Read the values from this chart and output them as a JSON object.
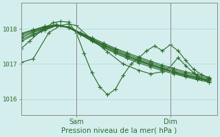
{
  "title": "Pression niveau de la mer( hPa )",
  "bg_color": "#d4eeee",
  "grid_color": "#a8d4d4",
  "line_color": "#2d6b2d",
  "marker": "+",
  "marker_size": 4,
  "linewidth": 0.85,
  "yticks": [
    1016,
    1017,
    1018
  ],
  "ylim": [
    1015.55,
    1018.75
  ],
  "xlim": [
    0,
    50
  ],
  "xtick_positions": [
    14,
    38
  ],
  "xtick_labels": [
    "Sam",
    "Dim"
  ],
  "vline_positions": [
    14,
    38
  ],
  "series": [
    {
      "x": [
        0,
        3,
        6,
        9,
        12,
        15,
        18,
        21,
        24,
        27,
        30,
        33,
        36,
        39,
        42,
        45,
        48
      ],
      "y": [
        1017.7,
        1017.85,
        1018.0,
        1018.1,
        1018.05,
        1017.9,
        1017.75,
        1017.6,
        1017.45,
        1017.32,
        1017.2,
        1017.08,
        1016.97,
        1016.87,
        1016.78,
        1016.7,
        1016.62
      ]
    },
    {
      "x": [
        0,
        3,
        6,
        9,
        12,
        15,
        18,
        21,
        24,
        27,
        30,
        33,
        36,
        39,
        42,
        45,
        48
      ],
      "y": [
        1017.75,
        1017.9,
        1018.02,
        1018.1,
        1018.05,
        1017.88,
        1017.72,
        1017.56,
        1017.42,
        1017.28,
        1017.16,
        1017.04,
        1016.93,
        1016.83,
        1016.74,
        1016.66,
        1016.58
      ]
    },
    {
      "x": [
        0,
        3,
        6,
        9,
        12,
        15,
        18,
        21,
        24,
        27,
        30,
        33,
        36,
        39,
        42,
        45,
        48
      ],
      "y": [
        1017.8,
        1017.93,
        1018.04,
        1018.1,
        1018.04,
        1017.87,
        1017.7,
        1017.53,
        1017.38,
        1017.24,
        1017.12,
        1017.0,
        1016.89,
        1016.79,
        1016.7,
        1016.62,
        1016.55
      ]
    },
    {
      "x": [
        0,
        3,
        6,
        9,
        12,
        15,
        18,
        21,
        24,
        27,
        30,
        33,
        36,
        39,
        42,
        45,
        48
      ],
      "y": [
        1017.85,
        1017.96,
        1018.06,
        1018.12,
        1018.05,
        1017.86,
        1017.67,
        1017.5,
        1017.34,
        1017.2,
        1017.07,
        1016.96,
        1016.85,
        1016.75,
        1016.66,
        1016.58,
        1016.51
      ]
    },
    {
      "x": [
        0,
        3,
        6,
        9,
        12,
        15,
        18,
        21,
        24,
        27,
        30,
        33,
        36,
        39,
        42,
        45,
        48
      ],
      "y": [
        1017.88,
        1017.98,
        1018.08,
        1018.13,
        1018.05,
        1017.85,
        1017.65,
        1017.47,
        1017.31,
        1017.16,
        1017.03,
        1016.92,
        1016.81,
        1016.72,
        1016.63,
        1016.55,
        1016.48
      ]
    },
    {
      "x": [
        0,
        3,
        6,
        9,
        12,
        15,
        18,
        21,
        24,
        27,
        30,
        33,
        36,
        39,
        42,
        45,
        48
      ],
      "y": [
        1017.65,
        1017.82,
        1017.97,
        1018.1,
        1018.07,
        1017.9,
        1017.72,
        1017.55,
        1017.38,
        1017.23,
        1017.1,
        1016.98,
        1016.87,
        1016.77,
        1016.68,
        1016.6,
        1016.53
      ]
    }
  ],
  "noisy_series_1": {
    "x": [
      0,
      2,
      5,
      8,
      10,
      12,
      14,
      16,
      18,
      20,
      22,
      24,
      26,
      28,
      30,
      32,
      34,
      36,
      38,
      40,
      42,
      44,
      46,
      48
    ],
    "y": [
      1017.45,
      1017.65,
      1017.95,
      1018.18,
      1018.22,
      1018.2,
      1017.9,
      1017.3,
      1016.75,
      1016.35,
      1016.12,
      1016.28,
      1016.68,
      1017.0,
      1017.18,
      1017.38,
      1017.52,
      1017.38,
      1017.55,
      1017.38,
      1017.1,
      1016.85,
      1016.7,
      1016.6
    ]
  },
  "noisy_series_2": {
    "x": [
      0,
      3,
      7,
      10,
      12,
      14,
      18,
      22,
      26,
      30,
      33,
      36,
      38,
      40,
      42,
      44,
      46,
      48
    ],
    "y": [
      1017.05,
      1017.15,
      1017.9,
      1018.1,
      1018.15,
      1018.1,
      1017.7,
      1017.35,
      1017.0,
      1016.82,
      1016.72,
      1016.78,
      1016.92,
      1017.18,
      1016.95,
      1016.75,
      1016.58,
      1016.48
    ]
  }
}
